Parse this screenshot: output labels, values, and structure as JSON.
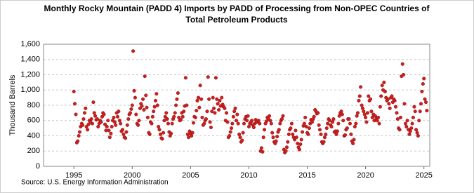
{
  "chart_data": {
    "type": "scatter",
    "title_lines": [
      "Monthly Rocky Mountain (PADD 4) Imports by PADD of Processing from Non-OPEC Countries of",
      "Total Petroleum Products"
    ],
    "y_label": "Thousand Barrels",
    "source": "Source: U.S. Energy Information Administration",
    "color": "#cc2020",
    "grid": true,
    "xlim": [
      1992.4,
      2025.5
    ],
    "xticks": [
      1995,
      2000,
      2005,
      2010,
      2015,
      2020,
      2025
    ],
    "ylim": [
      0,
      1600
    ],
    "yticks": [
      0,
      200,
      400,
      600,
      800,
      {
        "value": 1000,
        "label": "1,000"
      },
      {
        "value": 1200,
        "label": "1,200"
      },
      {
        "value": 1400,
        "label": "1,400"
      },
      {
        "value": 1600,
        "label": "1,600"
      }
    ],
    "x": [
      1995.0,
      1995.08,
      1995.17,
      1995.25,
      1995.33,
      1995.42,
      1995.5,
      1995.58,
      1995.67,
      1995.75,
      1995.83,
      1995.92,
      1996.0,
      1996.08,
      1996.17,
      1996.25,
      1996.33,
      1996.42,
      1996.5,
      1996.58,
      1996.67,
      1996.75,
      1996.83,
      1996.92,
      1997.0,
      1997.08,
      1997.17,
      1997.25,
      1997.33,
      1997.42,
      1997.5,
      1997.58,
      1997.67,
      1997.75,
      1997.83,
      1997.92,
      1998.0,
      1998.08,
      1998.17,
      1998.25,
      1998.33,
      1998.42,
      1998.5,
      1998.58,
      1998.67,
      1998.75,
      1998.83,
      1998.92,
      1999.0,
      1999.08,
      1999.17,
      1999.25,
      1999.33,
      1999.42,
      1999.5,
      1999.58,
      1999.67,
      1999.75,
      1999.83,
      1999.92,
      2000.0,
      2000.08,
      2000.17,
      2000.25,
      2000.33,
      2000.42,
      2000.5,
      2000.58,
      2000.67,
      2000.75,
      2000.83,
      2000.92,
      2001.0,
      2001.08,
      2001.17,
      2001.25,
      2001.33,
      2001.42,
      2001.5,
      2001.58,
      2001.67,
      2001.75,
      2001.83,
      2001.92,
      2002.0,
      2002.08,
      2002.17,
      2002.25,
      2002.33,
      2002.42,
      2002.5,
      2002.58,
      2002.67,
      2002.75,
      2002.83,
      2002.92,
      2003.0,
      2003.08,
      2003.17,
      2003.25,
      2003.33,
      2003.42,
      2003.5,
      2003.58,
      2003.67,
      2003.75,
      2003.83,
      2003.92,
      2004.0,
      2004.08,
      2004.17,
      2004.25,
      2004.33,
      2004.42,
      2004.5,
      2004.58,
      2004.67,
      2004.75,
      2004.83,
      2004.92,
      2005.0,
      2005.08,
      2005.17,
      2005.25,
      2005.33,
      2005.42,
      2005.5,
      2005.58,
      2005.67,
      2005.75,
      2005.83,
      2005.92,
      2006.0,
      2006.08,
      2006.17,
      2006.25,
      2006.33,
      2006.42,
      2006.5,
      2006.58,
      2006.67,
      2006.75,
      2006.83,
      2006.92,
      2007.0,
      2007.08,
      2007.17,
      2007.25,
      2007.33,
      2007.42,
      2007.5,
      2007.58,
      2007.67,
      2007.75,
      2007.83,
      2007.92,
      2008.0,
      2008.08,
      2008.17,
      2008.25,
      2008.33,
      2008.42,
      2008.5,
      2008.58,
      2008.67,
      2008.75,
      2008.83,
      2008.92,
      2009.0,
      2009.08,
      2009.17,
      2009.25,
      2009.33,
      2009.42,
      2009.5,
      2009.58,
      2009.67,
      2009.75,
      2009.83,
      2009.92,
      2010.0,
      2010.08,
      2010.17,
      2010.25,
      2010.33,
      2010.42,
      2010.5,
      2010.58,
      2010.67,
      2010.75,
      2010.83,
      2010.92,
      2011.0,
      2011.08,
      2011.17,
      2011.25,
      2011.33,
      2011.42,
      2011.5,
      2011.58,
      2011.67,
      2011.75,
      2011.83,
      2011.92,
      2012.0,
      2012.08,
      2012.17,
      2012.25,
      2012.33,
      2012.42,
      2012.5,
      2012.58,
      2012.67,
      2012.75,
      2012.83,
      2012.92,
      2013.0,
      2013.08,
      2013.17,
      2013.25,
      2013.33,
      2013.42,
      2013.5,
      2013.58,
      2013.67,
      2013.75,
      2013.83,
      2013.92,
      2014.0,
      2014.08,
      2014.17,
      2014.25,
      2014.33,
      2014.42,
      2014.5,
      2014.58,
      2014.67,
      2014.75,
      2014.83,
      2014.92,
      2015.0,
      2015.08,
      2015.17,
      2015.25,
      2015.33,
      2015.42,
      2015.5,
      2015.58,
      2015.67,
      2015.75,
      2015.83,
      2015.92,
      2016.0,
      2016.08,
      2016.17,
      2016.25,
      2016.33,
      2016.42,
      2016.5,
      2016.58,
      2016.67,
      2016.75,
      2016.83,
      2016.92,
      2017.0,
      2017.08,
      2017.17,
      2017.25,
      2017.33,
      2017.42,
      2017.5,
      2017.58,
      2017.67,
      2017.75,
      2017.83,
      2017.92,
      2018.0,
      2018.08,
      2018.17,
      2018.25,
      2018.33,
      2018.42,
      2018.5,
      2018.58,
      2018.67,
      2018.75,
      2018.83,
      2018.92,
      2019.0,
      2019.08,
      2019.17,
      2019.25,
      2019.33,
      2019.42,
      2019.5,
      2019.58,
      2019.67,
      2019.75,
      2019.83,
      2019.92,
      2020.0,
      2020.08,
      2020.17,
      2020.25,
      2020.33,
      2020.42,
      2020.5,
      2020.58,
      2020.67,
      2020.75,
      2020.83,
      2020.92,
      2021.0,
      2021.08,
      2021.17,
      2021.25,
      2021.33,
      2021.42,
      2021.5,
      2021.58,
      2021.67,
      2021.75,
      2021.83,
      2021.92,
      2022.0,
      2022.08,
      2022.17,
      2022.25,
      2022.33,
      2022.42,
      2022.5,
      2022.58,
      2022.67,
      2022.75,
      2022.83,
      2022.92,
      2023.0,
      2023.08,
      2023.17,
      2023.25,
      2023.33,
      2023.42,
      2023.5,
      2023.58,
      2023.67,
      2023.75,
      2023.83,
      2023.92,
      2024.0,
      2024.08,
      2024.17,
      2024.25,
      2024.33,
      2024.42,
      2024.5,
      2024.58,
      2024.67,
      2024.75,
      2024.83,
      2024.92,
      2025.0,
      2025.08,
      2025.17,
      2025.25
    ],
    "values": [
      980,
      820,
      680,
      310,
      330,
      400,
      450,
      520,
      560,
      540,
      620,
      700,
      760,
      520,
      480,
      550,
      600,
      580,
      620,
      560,
      840,
      700,
      660,
      610,
      620,
      520,
      560,
      600,
      580,
      650,
      700,
      680,
      550,
      470,
      520,
      600,
      470,
      380,
      430,
      520,
      600,
      640,
      580,
      540,
      700,
      650,
      720,
      600,
      560,
      460,
      480,
      420,
      380,
      370,
      450,
      540,
      620,
      680,
      700,
      750,
      800,
      1510,
      990,
      900,
      680,
      560,
      540,
      600,
      760,
      820,
      790,
      880,
      740,
      1180,
      930,
      770,
      640,
      440,
      420,
      580,
      560,
      650,
      720,
      780,
      860,
      950,
      800,
      520,
      480,
      420,
      370,
      360,
      440,
      600,
      650,
      700,
      620,
      560,
      450,
      400,
      430,
      560,
      620,
      650,
      700,
      800,
      880,
      960,
      640,
      600,
      610,
      700,
      650,
      720,
      790,
      1160,
      800,
      420,
      380,
      460,
      430,
      400,
      440,
      570,
      650,
      640,
      730,
      860,
      900,
      770,
      1060,
      880,
      640,
      540,
      560,
      600,
      620,
      720,
      1170,
      880,
      580,
      510,
      720,
      900,
      760,
      700,
      1160,
      880,
      820,
      740,
      860,
      790,
      900,
      810,
      780,
      760,
      600,
      700,
      580,
      380,
      400,
      450,
      500,
      560,
      650,
      720,
      760,
      600,
      680,
      560,
      420,
      380,
      320,
      340,
      440,
      560,
      620,
      650,
      600,
      660,
      520,
      560,
      580,
      600,
      540,
      510,
      560,
      610,
      580,
      590,
      600,
      560,
      200,
      240,
      190,
      380,
      480,
      560,
      590,
      640,
      620,
      660,
      600,
      560,
      440,
      380,
      320,
      300,
      330,
      390,
      450,
      480,
      560,
      600,
      620,
      660,
      220,
      180,
      200,
      250,
      320,
      420,
      480,
      500,
      560,
      420,
      380,
      350,
      470,
      380,
      300,
      250,
      220,
      290,
      350,
      450,
      530,
      560,
      640,
      520,
      440,
      420,
      500,
      560,
      610,
      580,
      620,
      650,
      740,
      720,
      690,
      700,
      540,
      480,
      420,
      320,
      300,
      320,
      380,
      420,
      500,
      560,
      620,
      600,
      540,
      520,
      580,
      620,
      450,
      460,
      420,
      460,
      560,
      660,
      700,
      720,
      680,
      600,
      400,
      410,
      480,
      500,
      620,
      620,
      560,
      420,
      330,
      300,
      350,
      520,
      560,
      660,
      700,
      860,
      920,
      1040,
      800,
      760,
      720,
      680,
      640,
      580,
      700,
      920,
      860,
      880,
      720,
      640,
      680,
      600,
      660,
      620,
      600,
      640,
      560,
      780,
      920,
      1060,
      1000,
      1100,
      980,
      900,
      860,
      880,
      820,
      760,
      900,
      920,
      840,
      880,
      860,
      780,
      700,
      620,
      500,
      480,
      640,
      1180,
      1340,
      1200,
      820,
      560,
      520,
      600,
      480,
      420,
      460,
      500,
      560,
      640,
      780,
      720,
      480,
      440,
      400,
      600,
      720,
      820,
      980,
      1080,
      1150,
      880,
      840,
      730
    ]
  }
}
